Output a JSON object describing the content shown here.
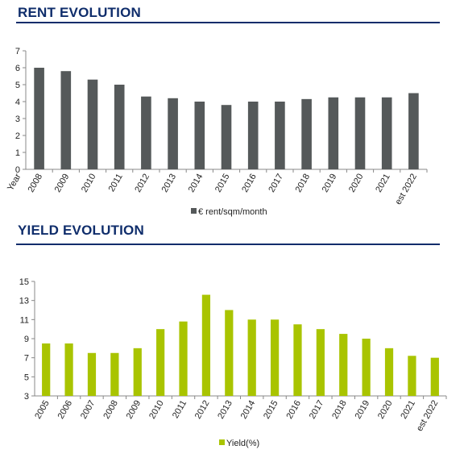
{
  "rent": {
    "title": "RENT EVOLUTION",
    "chart_data": {
      "type": "bar",
      "xlabel": "Year",
      "ylabel": "",
      "categories": [
        "2008",
        "2009",
        "2010",
        "2011",
        "2012",
        "2013",
        "2014",
        "2015",
        "2016",
        "2017",
        "2018",
        "2019",
        "2020",
        "2021",
        "est 2022"
      ],
      "series": [
        {
          "name": "€ rent/sqm/month",
          "values": [
            6.0,
            5.8,
            5.3,
            5.0,
            4.3,
            4.2,
            4.0,
            3.8,
            4.0,
            4.0,
            4.15,
            4.25,
            4.25,
            4.25,
            4.5
          ]
        }
      ],
      "ylim": [
        0,
        7
      ],
      "yticks": [
        0,
        1,
        2,
        3,
        4,
        5,
        6,
        7
      ],
      "grid": false,
      "legend": "bottom-center",
      "color": "#55595a"
    }
  },
  "yield": {
    "title": "YIELD EVOLUTION",
    "chart_data": {
      "type": "bar",
      "xlabel": "",
      "ylabel": "",
      "categories": [
        "2005",
        "2006",
        "2007",
        "2008",
        "2009",
        "2010",
        "2011",
        "2012",
        "2013",
        "2014",
        "2015",
        "2016",
        "2017",
        "2018",
        "2019",
        "2020",
        "2021",
        "est 2022"
      ],
      "series": [
        {
          "name": "Yield(%)",
          "values": [
            8.5,
            8.5,
            7.5,
            7.5,
            8.0,
            10.0,
            10.8,
            13.6,
            12.0,
            11.0,
            11.0,
            10.5,
            10.0,
            9.5,
            9.0,
            8.0,
            7.2,
            7.0
          ]
        }
      ],
      "ylim": [
        3,
        15
      ],
      "yticks": [
        3,
        5,
        7,
        9,
        11,
        13,
        15
      ],
      "grid": false,
      "legend": "bottom-center",
      "color": "#a9c400"
    }
  }
}
